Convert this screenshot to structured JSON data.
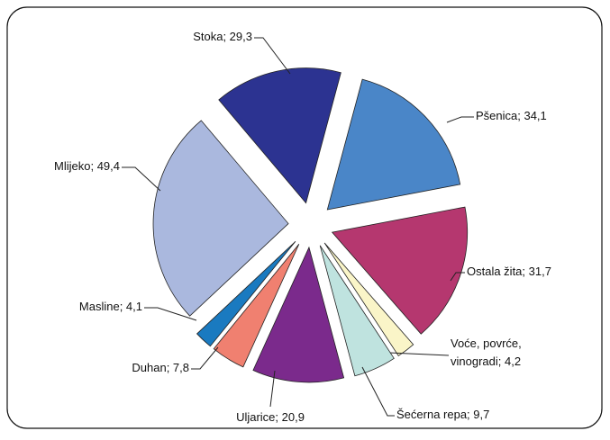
{
  "chart_data": {
    "type": "pie",
    "labels": [
      [
        "Pšenica; 34,1"
      ],
      [
        "Ostala žita; 31,7"
      ],
      [
        "Voće, povrće,",
        "vinogradi;  4,2"
      ],
      [
        "Šećerna repa; 9,7"
      ],
      [
        "Uljarice; 20,9"
      ],
      [
        "Duhan; 7,8"
      ],
      [
        "Masline; 4,1"
      ],
      [
        "Mlijeko; 49,4"
      ],
      [
        "Stoka; 29,3"
      ]
    ],
    "values": [
      34.1,
      31.7,
      4.2,
      9.7,
      20.9,
      7.8,
      4.1,
      49.4,
      29.3
    ],
    "colors": [
      "#4a86c8",
      "#b5376f",
      "#faf5c8",
      "#bfe3df",
      "#7b2a8c",
      "#f08070",
      "#1a7ac0",
      "#aab8de",
      "#2c3391"
    ]
  }
}
